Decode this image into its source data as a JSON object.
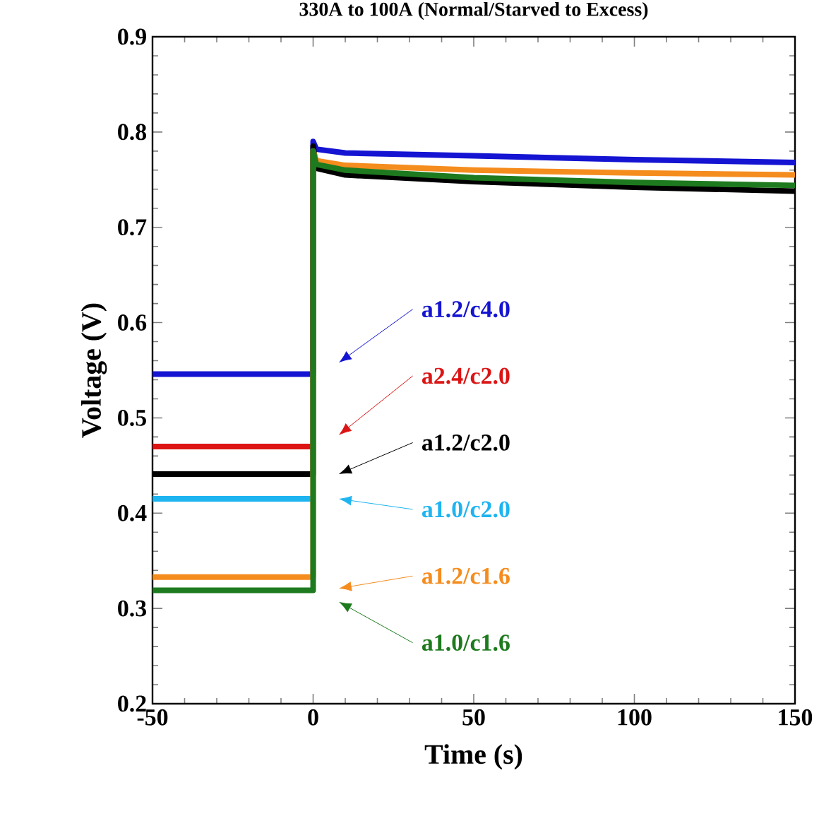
{
  "chart_data": {
    "type": "line",
    "title": "330A to 100A (Normal/Starved to Excess)",
    "xlabel": "Time (s)",
    "ylabel": "Voltage (V)",
    "xlim": [
      -50,
      150
    ],
    "ylim": [
      0.2,
      0.9
    ],
    "xticks": [
      -50,
      0,
      50,
      100,
      150
    ],
    "yticks": [
      0.2,
      0.3,
      0.4,
      0.5,
      0.6,
      0.7,
      0.8,
      0.9
    ],
    "grid": false,
    "legend": "center",
    "marker": "none",
    "line_style": "solid",
    "series": [
      {
        "name": "a1.2/c4.0",
        "color": "#1414d2",
        "x": [
          -50,
          0,
          0,
          1,
          10,
          50,
          100,
          150
        ],
        "values": [
          0.546,
          0.546,
          0.79,
          0.782,
          0.778,
          0.775,
          0.771,
          0.768
        ]
      },
      {
        "name": "a2.4/c2.0",
        "color": "#dc1414",
        "x": [
          -50,
          0
        ],
        "values": [
          0.47,
          0.47
        ]
      },
      {
        "name": "a1.2/c2.0",
        "color": "#000000",
        "x": [
          -50,
          0,
          0,
          1,
          10,
          50,
          100,
          150
        ],
        "values": [
          0.441,
          0.441,
          0.785,
          0.762,
          0.755,
          0.748,
          0.742,
          0.738
        ]
      },
      {
        "name": "a1.0/c2.0",
        "color": "#1eb4f0",
        "x": [
          -50,
          0
        ],
        "values": [
          0.415,
          0.415
        ]
      },
      {
        "name": "a1.2/c1.6",
        "color": "#f58c1e",
        "x": [
          -50,
          0,
          0,
          1,
          10,
          50,
          100,
          150
        ],
        "values": [
          0.333,
          0.333,
          0.78,
          0.77,
          0.765,
          0.76,
          0.757,
          0.755
        ]
      },
      {
        "name": "a1.0/c1.6",
        "color": "#1e7a1e",
        "x": [
          -50,
          0,
          0,
          1,
          10,
          50,
          100,
          150
        ],
        "values": [
          0.319,
          0.319,
          0.78,
          0.766,
          0.76,
          0.752,
          0.747,
          0.744
        ]
      }
    ]
  }
}
